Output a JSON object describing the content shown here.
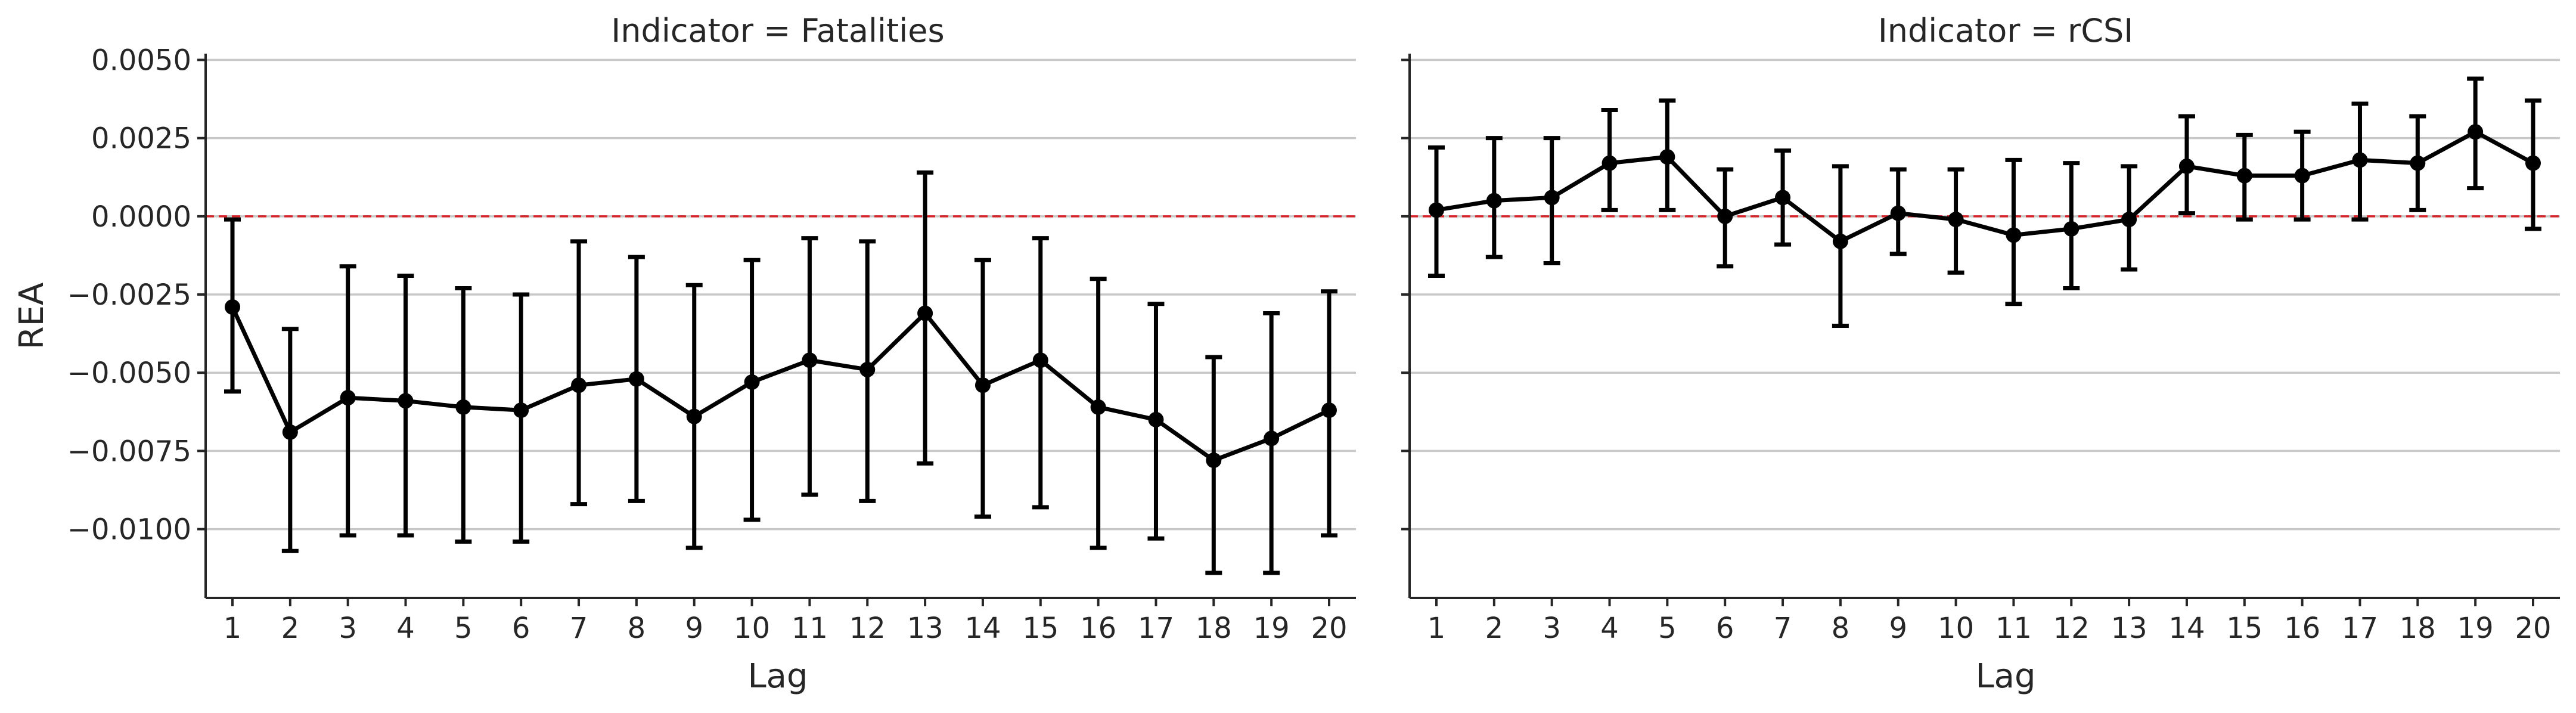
{
  "chart_data": [
    {
      "type": "line",
      "title": "Indicator = Fatalities",
      "xlabel": "Lag",
      "ylabel": "REA",
      "categories": [
        "1",
        "2",
        "3",
        "4",
        "5",
        "6",
        "7",
        "8",
        "9",
        "10",
        "11",
        "12",
        "13",
        "14",
        "15",
        "16",
        "17",
        "18",
        "19",
        "20"
      ],
      "y_ticks": [
        "0.0050",
        "0.0025",
        "0.0000",
        "−0.0025",
        "−0.0050",
        "−0.0075",
        "−0.0100"
      ],
      "ylim": [
        -0.0122,
        0.0052
      ],
      "grid": true,
      "reference_line": 0,
      "series": [
        {
          "values": [
            -0.0029,
            -0.0069,
            -0.0058,
            -0.0059,
            -0.0061,
            -0.0062,
            -0.0054,
            -0.0052,
            -0.0064,
            -0.0053,
            -0.0046,
            -0.0049,
            -0.0031,
            -0.0054,
            -0.0046,
            -0.0061,
            -0.0065,
            -0.0078,
            -0.0071,
            -0.0062
          ],
          "lower": [
            -0.0056,
            -0.0107,
            -0.0102,
            -0.0102,
            -0.0104,
            -0.0104,
            -0.0092,
            -0.0091,
            -0.0106,
            -0.0097,
            -0.0089,
            -0.0091,
            -0.0079,
            -0.0096,
            -0.0093,
            -0.0106,
            -0.0103,
            -0.0114,
            -0.0114,
            -0.0102
          ],
          "upper": [
            -0.0001,
            -0.0036,
            -0.0016,
            -0.0019,
            -0.0023,
            -0.0025,
            -0.0008,
            -0.0013,
            -0.0022,
            -0.0014,
            -0.0007,
            -0.0008,
            0.0014,
            -0.0014,
            -0.0007,
            -0.002,
            -0.0028,
            -0.0045,
            -0.0031,
            -0.0024
          ]
        }
      ]
    },
    {
      "type": "line",
      "title": "Indicator = rCSI",
      "xlabel": "Lag",
      "ylabel": "",
      "categories": [
        "1",
        "2",
        "3",
        "4",
        "5",
        "6",
        "7",
        "8",
        "9",
        "10",
        "11",
        "12",
        "13",
        "14",
        "15",
        "16",
        "17",
        "18",
        "19",
        "20"
      ],
      "ylim": [
        -0.0122,
        0.0052
      ],
      "grid": true,
      "reference_line": 0,
      "series": [
        {
          "values": [
            0.0002,
            0.0005,
            0.0006,
            0.0017,
            0.0019,
            0.0,
            0.0006,
            -0.0008,
            0.0001,
            -0.0001,
            -0.0006,
            -0.0004,
            -0.0001,
            0.0016,
            0.0013,
            0.0013,
            0.0018,
            0.0017,
            0.0027,
            0.0017
          ],
          "lower": [
            -0.0019,
            -0.0013,
            -0.0015,
            0.0002,
            0.0002,
            -0.0016,
            -0.0009,
            -0.0035,
            -0.0012,
            -0.0018,
            -0.0028,
            -0.0023,
            -0.0017,
            0.0001,
            -0.0001,
            -0.0001,
            -0.0001,
            0.0002,
            0.0009,
            -0.0004
          ],
          "upper": [
            0.0022,
            0.0025,
            0.0025,
            0.0034,
            0.0037,
            0.0015,
            0.0021,
            0.0016,
            0.0015,
            0.0015,
            0.0018,
            0.0017,
            0.0016,
            0.0032,
            0.0026,
            0.0027,
            0.0036,
            0.0032,
            0.0044,
            0.0037
          ]
        }
      ]
    }
  ]
}
